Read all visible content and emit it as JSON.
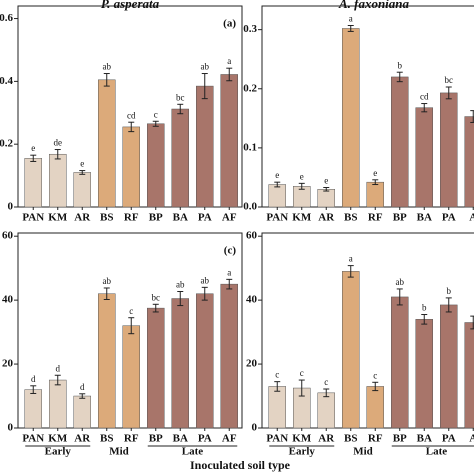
{
  "chart_data": [
    {
      "type": "bar",
      "title": "P. asperata",
      "panel_label": "(a)",
      "categories": [
        "PAN",
        "KM",
        "AR",
        "BS",
        "RF",
        "BP",
        "BA",
        "PA",
        "AF"
      ],
      "values": [
        0.155,
        0.168,
        0.11,
        0.405,
        0.255,
        0.265,
        0.312,
        0.385,
        0.422
      ],
      "errors": [
        0.01,
        0.015,
        0.006,
        0.02,
        0.015,
        0.008,
        0.015,
        0.04,
        0.02
      ],
      "letters": [
        "e",
        "de",
        "e",
        "ab",
        "cd",
        "c",
        "bc",
        "ab",
        "a"
      ],
      "colors": [
        "#e3d3c3",
        "#e3d3c3",
        "#e3d3c3",
        "#dcaa7a",
        "#dcaa7a",
        "#a8756a",
        "#a8756a",
        "#a8756a",
        "#a8756a"
      ],
      "ylim": [
        0,
        0.64
      ],
      "yticks": [
        0,
        0.2,
        0.4,
        0.6
      ]
    },
    {
      "type": "bar",
      "title": "A. faxoniana",
      "categories": [
        "PAN",
        "KM",
        "AR",
        "BS",
        "RF",
        "BP",
        "BA",
        "PA",
        "A"
      ],
      "values": [
        0.038,
        0.035,
        0.03,
        0.302,
        0.042,
        0.22,
        0.168,
        0.193,
        0.153
      ],
      "errors": [
        0.004,
        0.005,
        0.003,
        0.005,
        0.004,
        0.008,
        0.007,
        0.01,
        0.01
      ],
      "letters": [
        "e",
        "e",
        "e",
        "a",
        "e",
        "b",
        "cd",
        "bc",
        null
      ],
      "colors": [
        "#e3d3c3",
        "#e3d3c3",
        "#e3d3c3",
        "#dcaa7a",
        "#dcaa7a",
        "#a8756a",
        "#a8756a",
        "#a8756a",
        "#a8756a"
      ],
      "ylim": [
        0,
        0.34
      ],
      "yticks": [
        {
          "value": 0,
          "label": "0.0"
        },
        0.1,
        0.2,
        0.3
      ]
    },
    {
      "type": "bar",
      "panel_label": "(c)",
      "categories": [
        "PAN",
        "KM",
        "AR",
        "BS",
        "RF",
        "BP",
        "BA",
        "PA",
        "AF"
      ],
      "values": [
        12,
        15,
        10,
        42,
        32,
        37.5,
        40.5,
        42,
        45
      ],
      "errors": [
        1.2,
        1.5,
        0.7,
        1.8,
        2.5,
        1.2,
        2.2,
        2,
        1.5
      ],
      "letters": [
        "d",
        "d",
        "d",
        "ab",
        "c",
        "bc",
        "ab",
        "ab",
        "a"
      ],
      "colors": [
        "#e3d3c3",
        "#e3d3c3",
        "#e3d3c3",
        "#dcaa7a",
        "#dcaa7a",
        "#a8756a",
        "#a8756a",
        "#a8756a",
        "#a8756a"
      ],
      "ylim": [
        0,
        61
      ],
      "yticks": [
        0,
        20,
        40,
        60
      ],
      "groups": [
        "Early",
        "Mid",
        "Late"
      ],
      "xlabel": "Inoculated soil type"
    },
    {
      "type": "bar",
      "categories": [
        "PAN",
        "KM",
        "AR",
        "BS",
        "RF",
        "BP",
        "BA",
        "PA",
        "A"
      ],
      "values": [
        13,
        12.5,
        11,
        49,
        13,
        41,
        34,
        38.5,
        33
      ],
      "errors": [
        1.5,
        2.5,
        1.2,
        1.8,
        1.3,
        2.5,
        1.5,
        2.2,
        2
      ],
      "letters": [
        "c",
        "c",
        "c",
        "a",
        "c",
        "ab",
        "b",
        "b",
        null
      ],
      "colors": [
        "#e3d3c3",
        "#e3d3c3",
        "#e3d3c3",
        "#dcaa7a",
        "#dcaa7a",
        "#a8756a",
        "#a8756a",
        "#a8756a",
        "#a8756a"
      ],
      "ylim": [
        0,
        61
      ],
      "yticks": [
        0,
        20,
        40,
        60
      ],
      "groups": [
        "Early",
        "Mid",
        "Late"
      ]
    }
  ]
}
